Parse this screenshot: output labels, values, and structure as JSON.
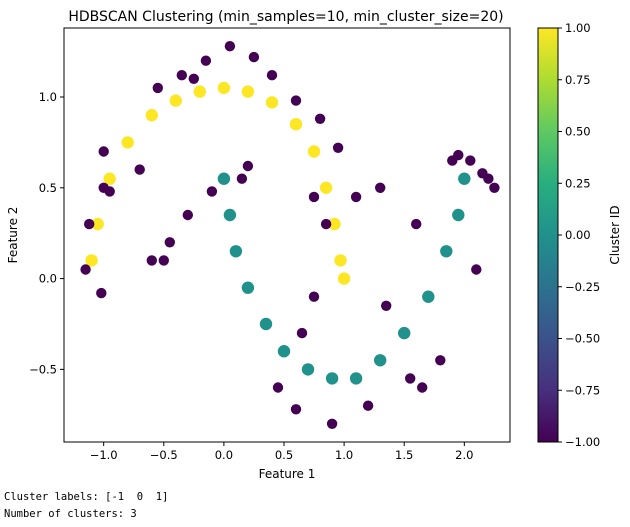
{
  "chart_data": {
    "type": "scatter",
    "title": "HDBSCAN Clustering (min_samples=10, min_cluster_size=20)",
    "xlabel": "Feature 1",
    "ylabel": "Feature 2",
    "xlim": [
      -1.33,
      2.38
    ],
    "ylim": [
      -0.9,
      1.38
    ],
    "xticks": [
      -1.0,
      -0.5,
      0.0,
      0.5,
      1.0,
      1.5,
      2.0
    ],
    "xtick_labels": [
      "−1.0",
      "−0.5",
      "0.0",
      "0.5",
      "1.0",
      "1.5",
      "2.0"
    ],
    "yticks": [
      -0.5,
      0.0,
      0.5,
      1.0
    ],
    "ytick_labels": [
      "−0.5",
      "0.0",
      "0.5",
      "1.0"
    ],
    "grid": false,
    "colorbar": {
      "label": "Cluster ID",
      "range": [
        -1.0,
        1.0
      ],
      "colormap": "viridis",
      "ticks": [
        1.0,
        0.75,
        0.5,
        0.25,
        0.0,
        -0.25,
        -0.5,
        -0.75,
        -1.0
      ],
      "tick_labels": [
        "1.00",
        "0.75",
        "0.50",
        "0.25",
        "0.00",
        "−0.25",
        "−0.50",
        "−0.75",
        "−1.00"
      ]
    },
    "series": [
      {
        "cluster": 1,
        "color": "#fde725",
        "shape": "upper moon",
        "points": [
          [
            -1.1,
            0.1
          ],
          [
            -1.05,
            0.3
          ],
          [
            -0.95,
            0.55
          ],
          [
            -0.8,
            0.75
          ],
          [
            -0.6,
            0.9
          ],
          [
            -0.4,
            0.98
          ],
          [
            -0.2,
            1.03
          ],
          [
            0.0,
            1.05
          ],
          [
            0.2,
            1.03
          ],
          [
            0.4,
            0.97
          ],
          [
            0.6,
            0.85
          ],
          [
            0.75,
            0.7
          ],
          [
            0.85,
            0.5
          ],
          [
            0.92,
            0.3
          ],
          [
            0.97,
            0.1
          ],
          [
            1.0,
            0.0
          ]
        ]
      },
      {
        "cluster": 0,
        "color": "#21918c",
        "shape": "lower moon",
        "points": [
          [
            0.0,
            0.55
          ],
          [
            0.05,
            0.35
          ],
          [
            0.1,
            0.15
          ],
          [
            0.2,
            -0.05
          ],
          [
            0.35,
            -0.25
          ],
          [
            0.5,
            -0.4
          ],
          [
            0.7,
            -0.5
          ],
          [
            0.9,
            -0.55
          ],
          [
            1.1,
            -0.55
          ],
          [
            1.3,
            -0.45
          ],
          [
            1.5,
            -0.3
          ],
          [
            1.7,
            -0.1
          ],
          [
            1.85,
            0.15
          ],
          [
            1.95,
            0.35
          ],
          [
            2.0,
            0.55
          ]
        ]
      },
      {
        "cluster": -1,
        "color": "#440154",
        "shape": "noise",
        "points": [
          [
            -1.0,
            0.5
          ],
          [
            -1.15,
            0.05
          ],
          [
            -1.02,
            -0.08
          ],
          [
            -0.95,
            0.48
          ],
          [
            -1.0,
            0.7
          ],
          [
            -0.7,
            0.6
          ],
          [
            -0.6,
            0.1
          ],
          [
            -0.35,
            1.12
          ],
          [
            -0.15,
            1.2
          ],
          [
            0.05,
            1.28
          ],
          [
            0.25,
            1.22
          ],
          [
            0.4,
            1.12
          ],
          [
            0.6,
            0.98
          ],
          [
            0.8,
            0.88
          ],
          [
            0.95,
            0.72
          ],
          [
            1.1,
            0.45
          ],
          [
            0.85,
            0.3
          ],
          [
            0.75,
            -0.1
          ],
          [
            0.65,
            -0.3
          ],
          [
            0.15,
            0.55
          ],
          [
            -0.1,
            0.48
          ],
          [
            -0.3,
            0.35
          ],
          [
            -0.5,
            0.1
          ],
          [
            0.45,
            -0.6
          ],
          [
            0.6,
            -0.72
          ],
          [
            0.9,
            -0.8
          ],
          [
            1.2,
            -0.7
          ],
          [
            1.55,
            -0.55
          ],
          [
            1.8,
            -0.45
          ],
          [
            1.9,
            0.65
          ],
          [
            2.05,
            0.65
          ],
          [
            2.2,
            0.55
          ],
          [
            2.25,
            0.5
          ],
          [
            2.1,
            0.05
          ],
          [
            1.6,
            0.3
          ],
          [
            1.3,
            0.5
          ],
          [
            1.35,
            -0.15
          ],
          [
            -0.55,
            1.05
          ],
          [
            -0.25,
            1.1
          ],
          [
            0.75,
            0.45
          ],
          [
            -1.12,
            0.3
          ],
          [
            -0.45,
            0.2
          ],
          [
            1.65,
            -0.6
          ],
          [
            0.2,
            0.62
          ],
          [
            1.95,
            0.68
          ],
          [
            2.15,
            0.58
          ]
        ]
      }
    ]
  },
  "output": {
    "line1": "Cluster labels: [-1  0  1]",
    "line2": "Number of clusters: 3"
  }
}
